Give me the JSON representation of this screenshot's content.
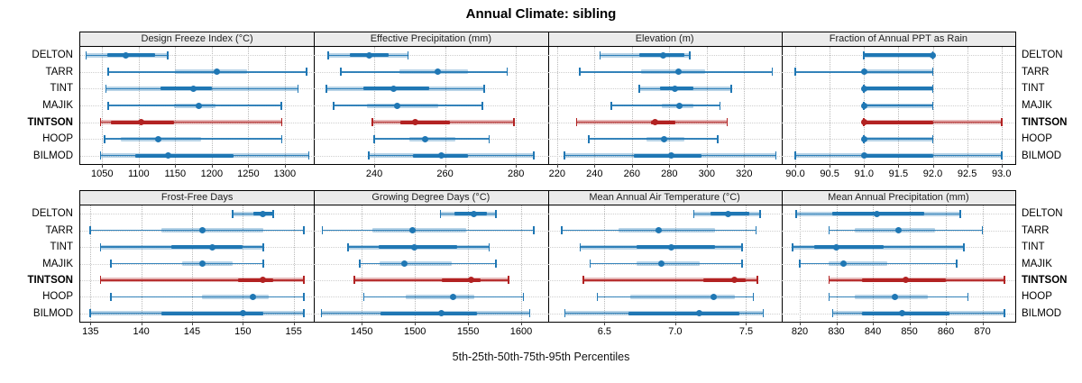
{
  "title": "Annual Climate: sibling",
  "caption": "5th-25th-50th-75th-95th Percentiles",
  "colors": {
    "accent_blue": "#1f77b4",
    "accent_red": "#b22222",
    "header_bg": "#ebebeb",
    "grid": "#c8c8c8",
    "border": "#000000"
  },
  "chart_data": {
    "type": "dotplot",
    "subtype": "percentile-intervals",
    "percentiles_shown": [
      5,
      25,
      50,
      75,
      95
    ],
    "legend_position": "none",
    "grid": "dotted",
    "rows": [
      "DELTON",
      "TARR",
      "TINT",
      "MAJIK",
      "TINTSON",
      "HOOP",
      "BILMOD"
    ],
    "highlight": "TINTSON",
    "panels": [
      {
        "row": 0,
        "col": 0,
        "title": "Design Freeze Index (°C)",
        "xlim": [
          1020,
          1340
        ],
        "ticks": [
          1050,
          1100,
          1150,
          1200,
          1250,
          1300
        ],
        "tick_labels": [
          "1050",
          "1100",
          "1150",
          "1200",
          "1250",
          "1300"
        ],
        "series": {
          "DELTON": [
            1028,
            1057,
            1082,
            1122,
            1140
          ],
          "TARR": [
            1058,
            1150,
            1207,
            1248,
            1330
          ],
          "TINT": [
            1055,
            1130,
            1175,
            1200,
            1318
          ],
          "MAJIK": [
            1058,
            1148,
            1182,
            1205,
            1295
          ],
          "TINTSON": [
            1048,
            1062,
            1103,
            1148,
            1296
          ],
          "HOOP": [
            1053,
            1075,
            1127,
            1185,
            1296
          ],
          "BILMOD": [
            1048,
            1095,
            1140,
            1230,
            1333
          ]
        }
      },
      {
        "row": 0,
        "col": 1,
        "title": "Effective Precipitation (mm)",
        "xlim": [
          223,
          289
        ],
        "ticks": [
          240,
          260,
          280
        ],
        "tick_labels": [
          "240",
          "260",
          "280"
        ],
        "series": {
          "DELTON": [
            227,
            233,
            238.5,
            244,
            249.5
          ],
          "TARR": [
            230.5,
            247,
            258,
            266.5,
            277.5
          ],
          "TINT": [
            226.5,
            237,
            245.5,
            255.5,
            271
          ],
          "MAJIK": [
            228.5,
            238,
            246.5,
            258,
            270.5
          ],
          "TINTSON": [
            239.5,
            247.5,
            251.5,
            261.5,
            279.5
          ],
          "HOOP": [
            240,
            250,
            254.5,
            263,
            272.5
          ],
          "BILMOD": [
            238.5,
            251,
            259,
            266.5,
            285
          ]
        }
      },
      {
        "row": 0,
        "col": 2,
        "title": "Elevation (m)",
        "xlim": [
          215,
          340
        ],
        "ticks": [
          220,
          240,
          260,
          280,
          300,
          320
        ],
        "tick_labels": [
          "220",
          "240",
          "260",
          "280",
          "300",
          "320"
        ],
        "series": {
          "DELTON": [
            243,
            264,
            276.5,
            288,
            291
          ],
          "TARR": [
            232,
            265,
            285,
            299,
            335
          ],
          "TINT": [
            264,
            275,
            283,
            293,
            313
          ],
          "MAJIK": [
            249,
            276,
            285.5,
            293,
            307
          ],
          "TINTSON": [
            230.5,
            270,
            272.5,
            283,
            311
          ],
          "HOOP": [
            237,
            268,
            277,
            288,
            306
          ],
          "BILMOD": [
            224,
            261,
            281,
            297,
            337
          ]
        }
      },
      {
        "row": 0,
        "col": 3,
        "title": "Fraction of Annual PPT as Rain",
        "xlim": [
          89.8,
          93.2
        ],
        "ticks": [
          90.0,
          90.5,
          91.0,
          91.5,
          92.0,
          92.5,
          93.0
        ],
        "tick_labels": [
          "90.0",
          "90.5",
          "91.0",
          "91.5",
          "92.0",
          "92.5",
          "93.0"
        ],
        "series": {
          "DELTON": [
            91,
            91,
            92,
            92,
            92
          ],
          "TARR": [
            90,
            91,
            91,
            92,
            92
          ],
          "TINT": [
            91,
            91,
            91,
            92,
            92
          ],
          "MAJIK": [
            91,
            91,
            91,
            92,
            92
          ],
          "TINTSON": [
            91,
            91,
            91,
            92,
            93
          ],
          "HOOP": [
            91,
            91,
            91,
            92,
            92
          ],
          "BILMOD": [
            90,
            91,
            91,
            92,
            93
          ]
        }
      },
      {
        "row": 1,
        "col": 0,
        "title": "Frost-Free Days",
        "xlim": [
          134,
          157
        ],
        "ticks": [
          135,
          140,
          145,
          150,
          155
        ],
        "tick_labels": [
          "135",
          "140",
          "145",
          "150",
          "155"
        ],
        "series": {
          "DELTON": [
            149,
            151,
            152,
            153,
            153
          ],
          "TARR": [
            135,
            142,
            146,
            152,
            156
          ],
          "TINT": [
            136,
            143,
            147,
            150,
            152
          ],
          "MAJIK": [
            137,
            144,
            146,
            149,
            152
          ],
          "TINTSON": [
            136,
            149.5,
            152,
            153,
            156
          ],
          "HOOP": [
            137,
            146,
            151,
            152.5,
            156
          ],
          "BILMOD": [
            135,
            142,
            150,
            152,
            156
          ]
        }
      },
      {
        "row": 1,
        "col": 1,
        "title": "Growing Degree Days (°C)",
        "xlim": [
          1405,
          1625
        ],
        "ticks": [
          1450,
          1500,
          1550,
          1600
        ],
        "tick_labels": [
          "1450",
          "1500",
          "1550",
          "1600"
        ],
        "series": {
          "DELTON": [
            1524,
            1537,
            1555,
            1568,
            1576
          ],
          "TARR": [
            1413,
            1460,
            1498,
            1548,
            1612
          ],
          "TINT": [
            1437,
            1466,
            1499,
            1540,
            1570
          ],
          "MAJIK": [
            1448,
            1467,
            1490,
            1535,
            1576
          ],
          "TINTSON": [
            1443,
            1525,
            1553,
            1562,
            1588
          ],
          "HOOP": [
            1452,
            1491,
            1536,
            1556,
            1602
          ],
          "BILMOD": [
            1412,
            1468,
            1525,
            1558,
            1608
          ]
        }
      },
      {
        "row": 1,
        "col": 2,
        "title": "Mean Annual Air Temperature (°C)",
        "xlim": [
          6.1,
          7.75
        ],
        "ticks": [
          6.5,
          7.0,
          7.5
        ],
        "tick_labels": [
          "6.5",
          "7.0",
          "7.5"
        ],
        "series": {
          "DELTON": [
            7.13,
            7.25,
            7.37,
            7.52,
            7.6
          ],
          "TARR": [
            6.2,
            6.6,
            6.88,
            7.28,
            7.57
          ],
          "TINT": [
            6.33,
            6.73,
            6.97,
            7.28,
            7.47
          ],
          "MAJIK": [
            6.4,
            6.73,
            6.9,
            7.17,
            7.47
          ],
          "TINTSON": [
            6.35,
            7.2,
            7.42,
            7.5,
            7.58
          ],
          "HOOP": [
            6.45,
            6.68,
            7.27,
            7.42,
            7.55
          ],
          "BILMOD": [
            6.22,
            6.67,
            7.17,
            7.45,
            7.62
          ]
        }
      },
      {
        "row": 1,
        "col": 3,
        "title": "Mean Annual Precipitation (mm)",
        "xlim": [
          815,
          879
        ],
        "ticks": [
          820,
          830,
          840,
          850,
          860,
          870
        ],
        "tick_labels": [
          "820",
          "830",
          "840",
          "850",
          "860",
          "870"
        ],
        "series": {
          "DELTON": [
            819,
            829,
            841,
            854,
            864
          ],
          "TARR": [
            828,
            835,
            847,
            857,
            870
          ],
          "TINT": [
            818,
            824,
            830,
            843,
            865
          ],
          "MAJIK": [
            820,
            828,
            832,
            844,
            863
          ],
          "TINTSON": [
            828,
            837,
            849,
            860,
            876
          ],
          "HOOP": [
            828,
            835,
            846,
            855,
            866
          ],
          "BILMOD": [
            829,
            837,
            848,
            861,
            876
          ]
        }
      }
    ]
  }
}
